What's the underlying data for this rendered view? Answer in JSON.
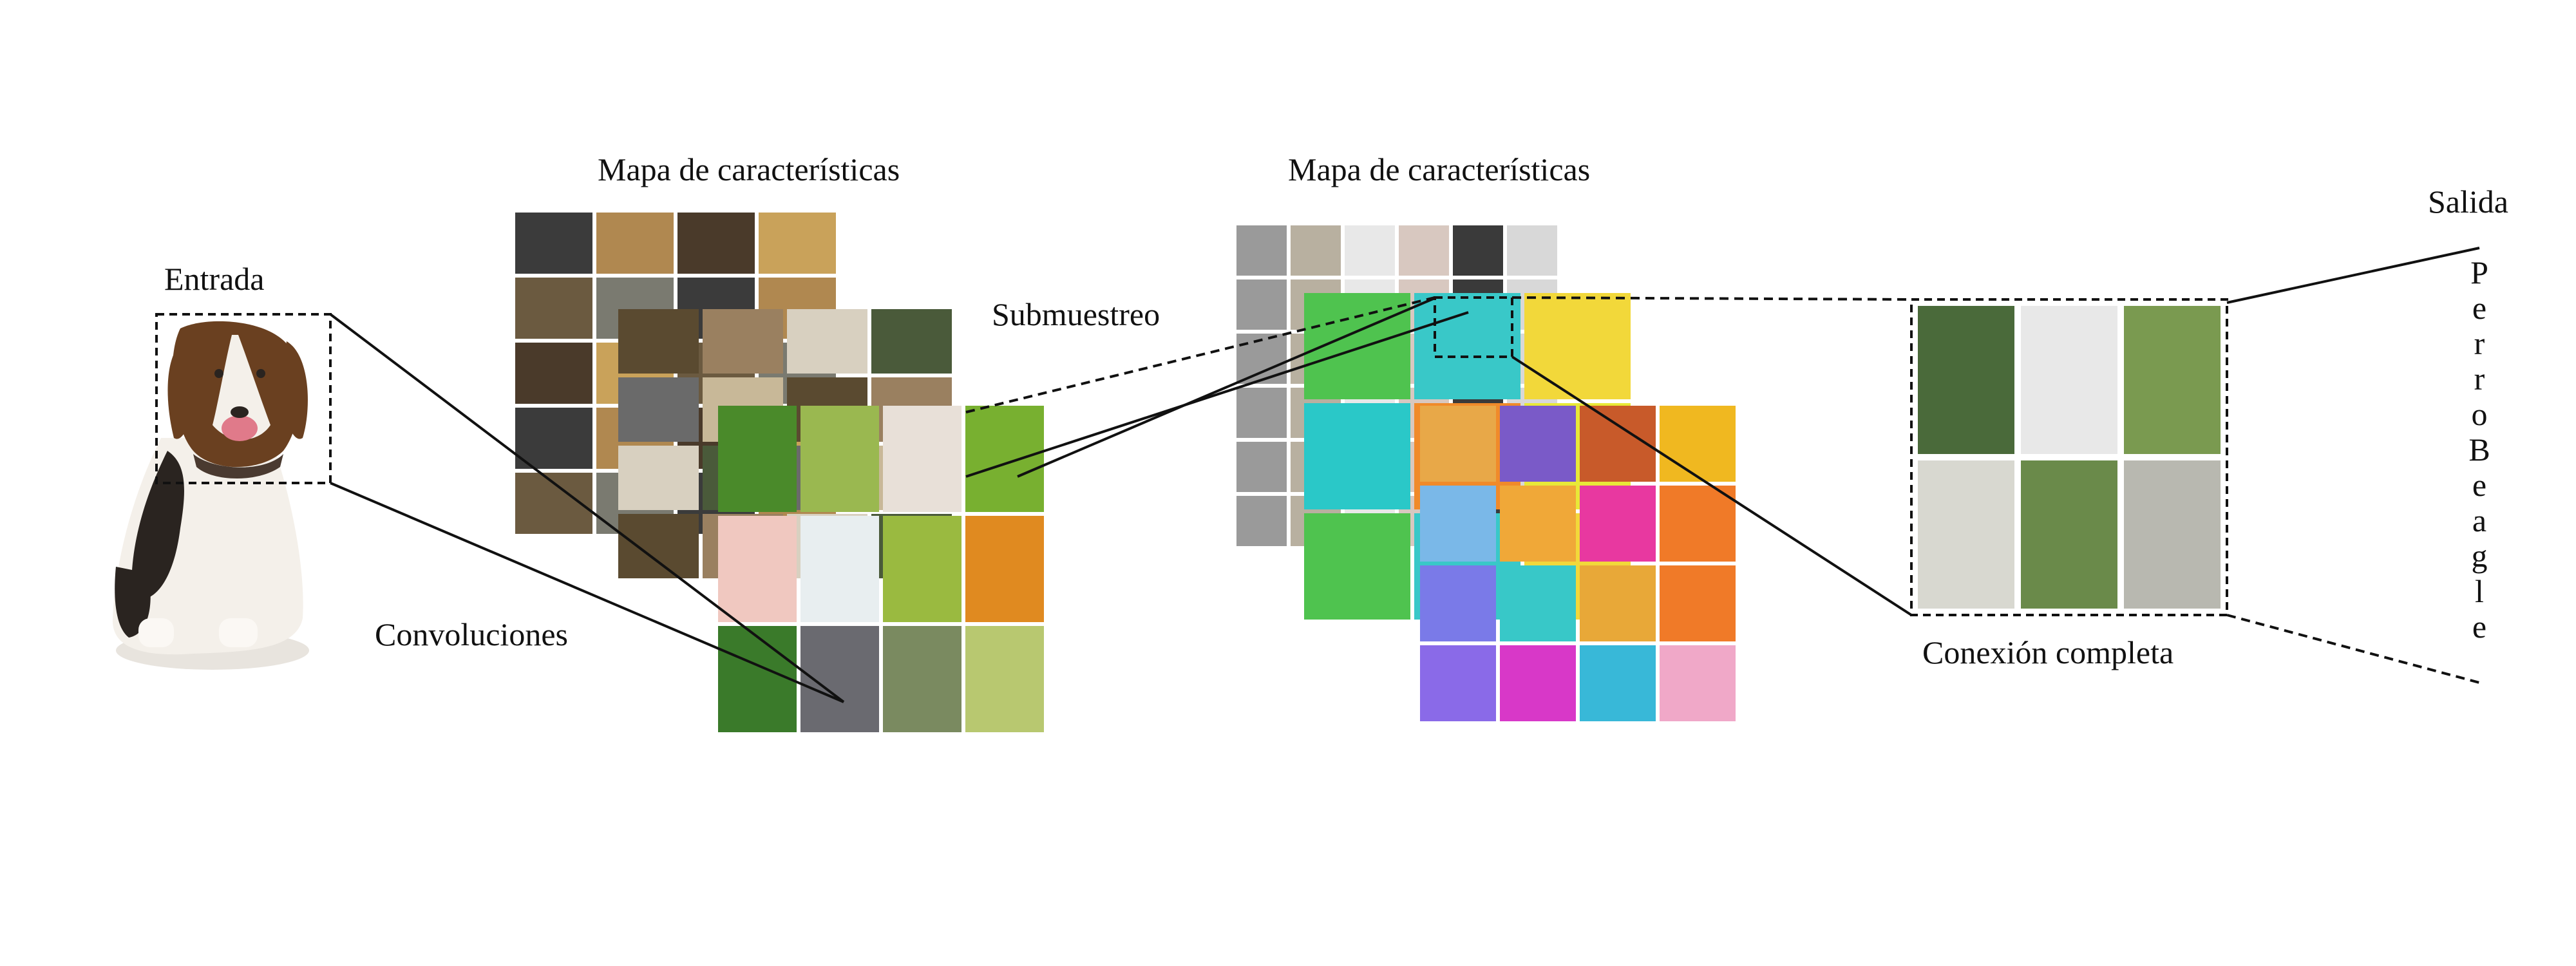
{
  "labels": {
    "input": "Entrada",
    "feature_map_1": "Mapa de características",
    "feature_map_2": "Mapa de características",
    "subsampling": "Submuestreo",
    "convolutions": "Convoluciones",
    "full_connection": "Conexión completa",
    "output": "Salida"
  },
  "output_word": [
    "P",
    "e",
    "r",
    "r",
    "o",
    "B",
    "e",
    "a",
    "g",
    "l",
    "e"
  ],
  "palette": {
    "map1_back": [
      "#3b3b3b",
      "#b08850",
      "#4a3a2a",
      "#c9a25a",
      "#6b5a40",
      "#7a7a70"
    ],
    "map1_mid": [
      "#5a4a30",
      "#9a8060",
      "#d8d0c0",
      "#4a5a3a",
      "#6a6a6a",
      "#c8b898"
    ],
    "map1_front": [
      "#4a8a2a",
      "#9ab850",
      "#e8e0d8",
      "#78b030",
      "#f0c8c0",
      "#e8eef0",
      "#9aba40",
      "#e08a20",
      "#3a7a2a",
      "#6a6a70",
      "#7a8a60",
      "#b8c870"
    ],
    "map2_back": [
      "#9a9a9a",
      "#b8b0a0",
      "#e8e8e8",
      "#d8c8c0",
      "#3a3a3a",
      "#d8d8d8"
    ],
    "map2_mid": [
      "#4fc34f",
      "#39c8c8",
      "#f2d83a",
      "#2ac8c8",
      "#f08a2a",
      "#e8e838"
    ],
    "map2_front": [
      "#e8a848",
      "#7a5ac8",
      "#c85a2a",
      "#f0b820",
      "#7ab8e8",
      "#f0a838",
      "#e838a0",
      "#f07a28",
      "#7a7ae8",
      "#38c8c8",
      "#e8a838",
      "#f07a28",
      "#8a6ae8",
      "#d838c8",
      "#38b8d8",
      "#f0a8c8"
    ],
    "fc": [
      "#4a6a3a",
      "#e8e8e8",
      "#7a9a50",
      "#d8d8d0",
      "#6a8a4a",
      "#b8b8b0"
    ],
    "dog_body": "#f4f0ea",
    "dog_patch": "#6a4020",
    "dog_black": "#2a2420"
  }
}
